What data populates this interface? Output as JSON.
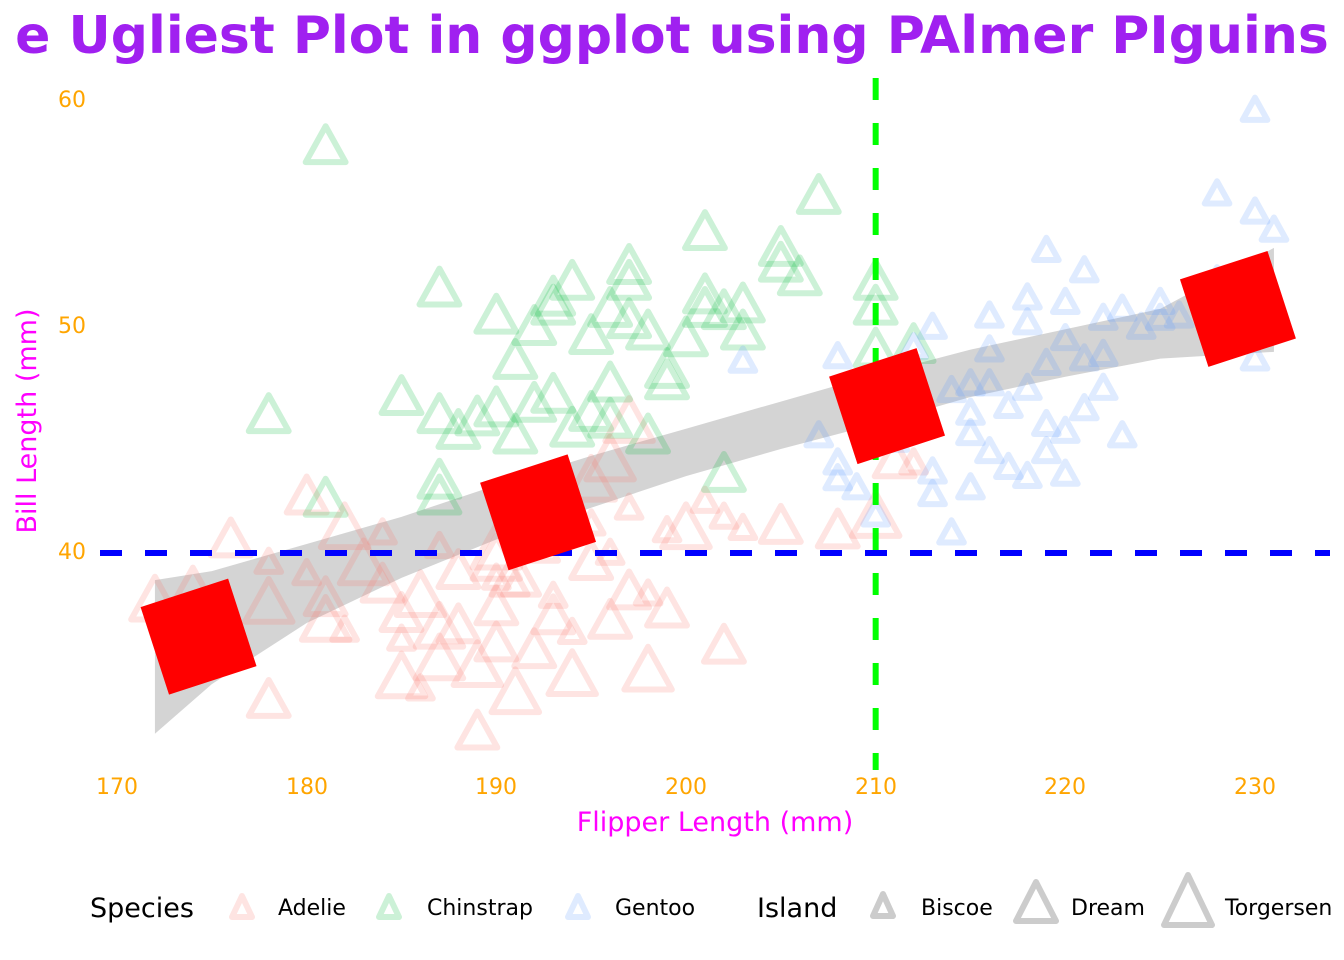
{
  "chart_data": {
    "type": "scatter",
    "title": "The Ugliest Plot in ggplot using PAlmer PIguins",
    "title_visible": "e Ugliest Plot in ggplot using PAlmer PIguins",
    "xlabel": "Flipper Length (mm)",
    "ylabel": "Bill Length (mm)",
    "xlim": [
      167,
      234
    ],
    "ylim": [
      30.5,
      61
    ],
    "x_ticks": [
      170,
      180,
      190,
      200,
      210,
      220,
      230
    ],
    "y_ticks": [
      40,
      50,
      60
    ],
    "grid": false,
    "legend_position": "bottom",
    "reference_lines": [
      {
        "orientation": "vertical",
        "value": 210,
        "color": "#00ff00",
        "style": "dashed"
      },
      {
        "orientation": "horizontal",
        "value": 40,
        "color": "#0000ff",
        "style": "dashed"
      }
    ],
    "smooth": {
      "method": "lm-curve",
      "color_fill": "#cccccc",
      "upper": [
        [
          172,
          38.8
        ],
        [
          175,
          39.2
        ],
        [
          180,
          40.4
        ],
        [
          185,
          41.6
        ],
        [
          190,
          43.0
        ],
        [
          195,
          44.3
        ],
        [
          200,
          45.5
        ],
        [
          205,
          46.7
        ],
        [
          210,
          47.9
        ],
        [
          215,
          49.0
        ],
        [
          220,
          49.9
        ],
        [
          225,
          50.8
        ],
        [
          231,
          53.5
        ]
      ],
      "lower": [
        [
          172,
          32.0
        ],
        [
          175,
          34.2
        ],
        [
          180,
          36.9
        ],
        [
          185,
          38.9
        ],
        [
          190,
          40.6
        ],
        [
          195,
          42.0
        ],
        [
          200,
          43.4
        ],
        [
          205,
          44.6
        ],
        [
          210,
          45.7
        ],
        [
          215,
          46.9
        ],
        [
          220,
          47.8
        ],
        [
          225,
          48.6
        ],
        [
          231,
          48.9
        ]
      ]
    },
    "squares": [
      {
        "x": 174.3,
        "y": 36.3,
        "color": "#ff0000"
      },
      {
        "x": 192.2,
        "y": 41.8,
        "color": "#ff0000"
      },
      {
        "x": 210.6,
        "y": 46.5,
        "color": "#ff0000"
      },
      {
        "x": 229.1,
        "y": 50.8,
        "color": "#ff0000"
      }
    ],
    "series": [
      {
        "name": "Adelie",
        "color": "#f8766d",
        "points": [
          [
            172,
            37.9,
            "T"
          ],
          [
            174,
            38.3,
            "T"
          ],
          [
            176,
            40.6,
            "D"
          ],
          [
            178,
            33.5,
            "D"
          ],
          [
            178,
            39.6,
            "B"
          ],
          [
            178,
            37.8,
            "T"
          ],
          [
            180,
            42.5,
            "D"
          ],
          [
            180,
            39.1,
            "B"
          ],
          [
            181,
            38.0,
            "D"
          ],
          [
            181,
            37.0,
            "T"
          ],
          [
            182,
            41.1,
            "T"
          ],
          [
            182,
            36.6,
            "B"
          ],
          [
            183,
            39.5,
            "T"
          ],
          [
            184,
            40.9,
            "B"
          ],
          [
            184,
            38.6,
            "D"
          ],
          [
            185,
            34.5,
            "T"
          ],
          [
            185,
            37.3,
            "D"
          ],
          [
            185,
            36.2,
            "B"
          ],
          [
            186,
            38.1,
            "T"
          ],
          [
            186,
            34.0,
            "B"
          ],
          [
            187,
            36.7,
            "T"
          ],
          [
            187,
            35.3,
            "T"
          ],
          [
            187,
            40.3,
            "B"
          ],
          [
            188,
            39.2,
            "D"
          ],
          [
            188,
            36.8,
            "D"
          ],
          [
            189,
            32.1,
            "D"
          ],
          [
            189,
            35.0,
            "T"
          ],
          [
            190,
            39.7,
            "T"
          ],
          [
            190,
            38.9,
            "B"
          ],
          [
            190,
            37.6,
            "D"
          ],
          [
            190,
            36.0,
            "D"
          ],
          [
            190,
            40.2,
            "T"
          ],
          [
            191,
            33.8,
            "T"
          ],
          [
            191,
            38.6,
            "B"
          ],
          [
            191,
            39.0,
            "T"
          ],
          [
            192,
            35.7,
            "D"
          ],
          [
            192,
            42.2,
            "B"
          ],
          [
            192,
            40.5,
            "T"
          ],
          [
            193,
            37.2,
            "D"
          ],
          [
            193,
            38.1,
            "B"
          ],
          [
            193,
            42.9,
            "T"
          ],
          [
            194,
            36.5,
            "B"
          ],
          [
            194,
            34.6,
            "T"
          ],
          [
            195,
            39.6,
            "D"
          ],
          [
            195,
            41.3,
            "B"
          ],
          [
            195,
            43.2,
            "T"
          ],
          [
            196,
            37.0,
            "D"
          ],
          [
            196,
            40.0,
            "B"
          ],
          [
            196,
            44.1,
            "T"
          ],
          [
            197,
            42.0,
            "B"
          ],
          [
            197,
            45.8,
            "T"
          ],
          [
            197,
            38.3,
            "D"
          ],
          [
            198,
            34.8,
            "T"
          ],
          [
            198,
            38.2,
            "B"
          ],
          [
            199,
            37.5,
            "D"
          ],
          [
            199,
            41.0,
            "B"
          ],
          [
            200,
            41.1,
            "T"
          ],
          [
            201,
            42.3,
            "B"
          ],
          [
            202,
            41.6,
            "B"
          ],
          [
            202,
            35.9,
            "D"
          ],
          [
            203,
            41.1,
            "B"
          ],
          [
            205,
            41.2,
            "D"
          ],
          [
            208,
            41.0,
            "D"
          ],
          [
            210,
            41.6,
            "T"
          ],
          [
            211,
            44.1,
            "D"
          ],
          [
            212,
            44.0,
            "B"
          ]
        ]
      },
      {
        "name": "Chinstrap",
        "color": "#00ba38",
        "points": [
          [
            178,
            46.1,
            "D"
          ],
          [
            181,
            58.0,
            "D"
          ],
          [
            181,
            42.4,
            "D"
          ],
          [
            185,
            46.9,
            "D"
          ],
          [
            187,
            51.7,
            "D"
          ],
          [
            187,
            46.1,
            "D"
          ],
          [
            187,
            43.2,
            "D"
          ],
          [
            187,
            42.5,
            "D"
          ],
          [
            188,
            45.4,
            "D"
          ],
          [
            189,
            46.0,
            "D"
          ],
          [
            190,
            50.5,
            "D"
          ],
          [
            190,
            46.4,
            "D"
          ],
          [
            191,
            48.5,
            "D"
          ],
          [
            191,
            45.2,
            "D"
          ],
          [
            192,
            46.6,
            "D"
          ],
          [
            192,
            50.0,
            "D"
          ],
          [
            193,
            47.0,
            "D"
          ],
          [
            193,
            50.9,
            "D"
          ],
          [
            193,
            51.3,
            "D"
          ],
          [
            194,
            45.5,
            "D"
          ],
          [
            194,
            52.0,
            "D"
          ],
          [
            195,
            49.6,
            "D"
          ],
          [
            195,
            46.2,
            "D"
          ],
          [
            196,
            50.8,
            "D"
          ],
          [
            196,
            47.5,
            "D"
          ],
          [
            196,
            45.9,
            "D"
          ],
          [
            197,
            52.7,
            "D"
          ],
          [
            197,
            50.3,
            "D"
          ],
          [
            197,
            52.0,
            "D"
          ],
          [
            198,
            49.8,
            "D"
          ],
          [
            198,
            45.2,
            "D"
          ],
          [
            199,
            48.1,
            "D"
          ],
          [
            199,
            47.6,
            "D"
          ],
          [
            200,
            49.5,
            "D"
          ],
          [
            201,
            54.2,
            "D"
          ],
          [
            201,
            51.4,
            "D"
          ],
          [
            201,
            50.8,
            "D"
          ],
          [
            202,
            50.7,
            "D"
          ],
          [
            202,
            43.5,
            "D"
          ],
          [
            203,
            49.8,
            "D"
          ],
          [
            203,
            51.0,
            "D"
          ],
          [
            205,
            53.5,
            "D"
          ],
          [
            205,
            52.8,
            "D"
          ],
          [
            206,
            52.2,
            "D"
          ],
          [
            207,
            55.8,
            "D"
          ],
          [
            210,
            52.0,
            "D"
          ],
          [
            210,
            50.9,
            "D"
          ],
          [
            210,
            49.0,
            "D"
          ],
          [
            212,
            49.2,
            "D"
          ]
        ]
      },
      {
        "name": "Gentoo",
        "color": "#619cff",
        "points": [
          [
            203,
            48.5,
            "B"
          ],
          [
            207,
            45.2,
            "B"
          ],
          [
            208,
            48.7,
            "B"
          ],
          [
            208,
            43.3,
            "B"
          ],
          [
            208,
            44.0,
            "B"
          ],
          [
            209,
            42.9,
            "B"
          ],
          [
            210,
            41.7,
            "B"
          ],
          [
            211,
            45.0,
            "B"
          ],
          [
            212,
            49.1,
            "B"
          ],
          [
            213,
            50.0,
            "B"
          ],
          [
            213,
            43.6,
            "B"
          ],
          [
            213,
            42.6,
            "B"
          ],
          [
            214,
            47.2,
            "B"
          ],
          [
            214,
            40.9,
            "B"
          ],
          [
            215,
            47.5,
            "B"
          ],
          [
            215,
            46.2,
            "B"
          ],
          [
            215,
            45.3,
            "B"
          ],
          [
            215,
            42.9,
            "B"
          ],
          [
            216,
            50.5,
            "B"
          ],
          [
            216,
            49.0,
            "B"
          ],
          [
            216,
            47.5,
            "B"
          ],
          [
            216,
            44.5,
            "B"
          ],
          [
            217,
            46.5,
            "B"
          ],
          [
            217,
            43.8,
            "B"
          ],
          [
            218,
            51.3,
            "B"
          ],
          [
            218,
            50.2,
            "B"
          ],
          [
            218,
            47.3,
            "B"
          ],
          [
            218,
            43.4,
            "B"
          ],
          [
            219,
            53.4,
            "B"
          ],
          [
            219,
            48.4,
            "B"
          ],
          [
            219,
            45.7,
            "B"
          ],
          [
            219,
            44.5,
            "B"
          ],
          [
            220,
            51.1,
            "B"
          ],
          [
            220,
            49.5,
            "B"
          ],
          [
            220,
            45.4,
            "B"
          ],
          [
            220,
            43.5,
            "B"
          ],
          [
            221,
            52.5,
            "B"
          ],
          [
            221,
            48.6,
            "B"
          ],
          [
            221,
            46.4,
            "B"
          ],
          [
            222,
            50.4,
            "B"
          ],
          [
            222,
            48.8,
            "B"
          ],
          [
            222,
            47.3,
            "B"
          ],
          [
            223,
            50.8,
            "B"
          ],
          [
            223,
            45.2,
            "B"
          ],
          [
            224,
            50.0,
            "B"
          ],
          [
            225,
            51.1,
            "B"
          ],
          [
            225,
            50.4,
            "B"
          ],
          [
            226,
            50.5,
            "B"
          ],
          [
            228,
            52.1,
            "B"
          ],
          [
            228,
            55.9,
            "B"
          ],
          [
            229,
            49.8,
            "B"
          ],
          [
            230,
            59.6,
            "B"
          ],
          [
            230,
            55.1,
            "B"
          ],
          [
            230,
            48.6,
            "B"
          ],
          [
            231,
            54.3,
            "B"
          ]
        ]
      }
    ],
    "legend": {
      "species": {
        "title": "Species",
        "entries": [
          "Adelie",
          "Chinstrap",
          "Gentoo"
        ]
      },
      "island": {
        "title": "Island",
        "entries": [
          "Biscoe",
          "Dream",
          "Torgersen"
        ],
        "size_key": {
          "B": "Biscoe",
          "D": "Dream",
          "T": "Torgersen"
        }
      }
    }
  },
  "colors": {
    "title": "#a020f0",
    "axis_label": "#ff00ff",
    "tick_label": "#ffa500",
    "vline": "#00ff00",
    "hline": "#0000ff",
    "square": "#ff0000",
    "ribbon": "#cccccc",
    "legend_grey": "#cccccc"
  }
}
